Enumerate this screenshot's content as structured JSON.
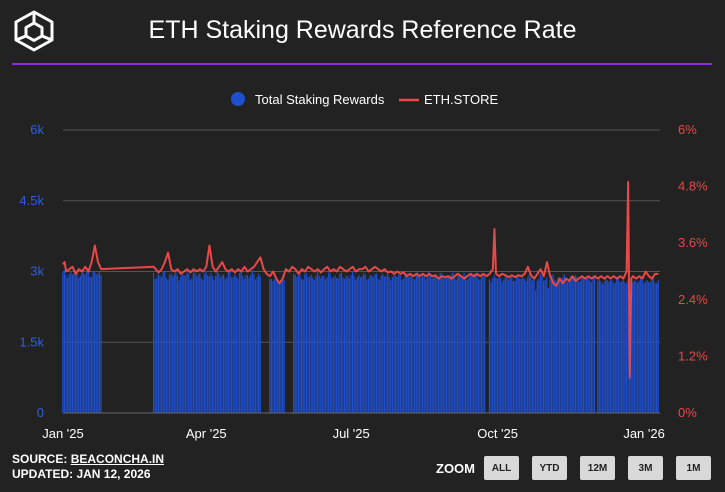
{
  "header": {
    "title": "ETH Staking Rewards Reference Rate"
  },
  "footer": {
    "source_label": "SOURCE:",
    "source_link": "BEACONCHA.IN",
    "updated": "UPDATED: JAN 12, 2026"
  },
  "zoom": {
    "label": "ZOOM",
    "buttons": [
      "ALL",
      "YTD",
      "12M",
      "3M",
      "1M"
    ]
  },
  "colors": {
    "bars": "#1f4fcf",
    "line": "#e84848",
    "left_axis": "#2f5fe0",
    "right_axis": "#e84848",
    "accent": "#8a2be2"
  },
  "chart_data": {
    "type": "bar+line",
    "legend": [
      "Total Staking Rewards",
      "ETH.STORE"
    ],
    "legend_position": "top-center",
    "x_ticks": [
      "Jan '25",
      "Apr '25",
      "Jul '25",
      "Oct '25",
      "Jan '26"
    ],
    "x_range_days": [
      0,
      375
    ],
    "x_tick_days": [
      0,
      90,
      181,
      273,
      365
    ],
    "y_left": {
      "label": "Total Staking Rewards",
      "ticks": [
        "0",
        "1.5k",
        "3k",
        "4.5k",
        "6k"
      ],
      "tick_values": [
        0,
        1500,
        3000,
        4500,
        6000
      ],
      "lim": [
        0,
        6000
      ]
    },
    "y_right": {
      "label": "ETH.STORE",
      "ticks": [
        "0%",
        "1.2%",
        "2.4%",
        "3.6%",
        "4.8%",
        "6%"
      ],
      "tick_values": [
        0,
        1.2,
        2.4,
        3.6,
        4.8,
        6.0
      ],
      "lim": [
        0,
        6.0
      ]
    },
    "bar_segments": [
      {
        "start": 0,
        "end": 24,
        "base": 2950,
        "amp": 90
      },
      {
        "start": 57,
        "end": 124,
        "base": 2920,
        "amp": 110
      },
      {
        "start": 130,
        "end": 139,
        "base": 2820,
        "amp": 80
      },
      {
        "start": 145,
        "end": 265,
        "base": 2900,
        "amp": 90
      },
      {
        "start": 268,
        "end": 334,
        "base": 2860,
        "amp": 90
      },
      {
        "start": 336,
        "end": 374,
        "base": 2800,
        "amp": 70
      }
    ],
    "bar_dips": [
      {
        "day": 297,
        "value": 2600
      },
      {
        "day": 305,
        "value": 2650
      },
      {
        "day": 335,
        "value": 2650
      }
    ],
    "line_points": [
      [
        0,
        3.15
      ],
      [
        1,
        3.2
      ],
      [
        2,
        3.0
      ],
      [
        4,
        3.05
      ],
      [
        6,
        3.1
      ],
      [
        8,
        2.95
      ],
      [
        10,
        3.05
      ],
      [
        12,
        3.0
      ],
      [
        14,
        3.1
      ],
      [
        16,
        3.0
      ],
      [
        18,
        3.2
      ],
      [
        20,
        3.55
      ],
      [
        22,
        3.2
      ],
      [
        24,
        3.05
      ],
      [
        57,
        3.1
      ],
      [
        60,
        2.98
      ],
      [
        62,
        3.05
      ],
      [
        64,
        3.2
      ],
      [
        66,
        3.4
      ],
      [
        68,
        3.05
      ],
      [
        70,
        3.0
      ],
      [
        72,
        3.05
      ],
      [
        74,
        2.95
      ],
      [
        76,
        3.0
      ],
      [
        78,
        3.05
      ],
      [
        80,
        2.98
      ],
      [
        82,
        3.05
      ],
      [
        84,
        3.0
      ],
      [
        86,
        3.05
      ],
      [
        88,
        3.0
      ],
      [
        90,
        3.1
      ],
      [
        92,
        3.55
      ],
      [
        94,
        3.1
      ],
      [
        96,
        3.0
      ],
      [
        98,
        3.1
      ],
      [
        100,
        3.2
      ],
      [
        102,
        3.05
      ],
      [
        104,
        3.0
      ],
      [
        106,
        3.05
      ],
      [
        108,
        2.98
      ],
      [
        110,
        3.05
      ],
      [
        112,
        3.0
      ],
      [
        114,
        3.1
      ],
      [
        116,
        3.0
      ],
      [
        118,
        3.05
      ],
      [
        120,
        3.1
      ],
      [
        122,
        3.2
      ],
      [
        124,
        3.3
      ],
      [
        126,
        3.05
      ],
      [
        128,
        2.95
      ],
      [
        130,
        2.9
      ],
      [
        132,
        3.0
      ],
      [
        134,
        2.85
      ],
      [
        136,
        2.75
      ],
      [
        138,
        2.85
      ],
      [
        140,
        3.05
      ],
      [
        142,
        3.0
      ],
      [
        144,
        3.1
      ],
      [
        146,
        3.05
      ],
      [
        148,
        2.95
      ],
      [
        150,
        3.05
      ],
      [
        152,
        3.0
      ],
      [
        154,
        3.1
      ],
      [
        156,
        3.05
      ],
      [
        158,
        3.0
      ],
      [
        160,
        3.05
      ],
      [
        162,
        2.98
      ],
      [
        164,
        3.05
      ],
      [
        166,
        3.1
      ],
      [
        168,
        3.0
      ],
      [
        170,
        3.05
      ],
      [
        172,
        3.0
      ],
      [
        174,
        3.1
      ],
      [
        176,
        3.05
      ],
      [
        178,
        3.0
      ],
      [
        180,
        3.05
      ],
      [
        182,
        3.1
      ],
      [
        184,
        3.0
      ],
      [
        186,
        3.05
      ],
      [
        188,
        3.05
      ],
      [
        190,
        3.1
      ],
      [
        192,
        3.0
      ],
      [
        194,
        3.05
      ],
      [
        196,
        3.1
      ],
      [
        198,
        3.05
      ],
      [
        200,
        3.0
      ],
      [
        202,
        3.05
      ],
      [
        204,
        2.98
      ],
      [
        206,
        3.0
      ],
      [
        208,
        2.95
      ],
      [
        210,
        3.0
      ],
      [
        212,
        2.95
      ],
      [
        214,
        2.98
      ],
      [
        216,
        2.9
      ],
      [
        218,
        2.95
      ],
      [
        220,
        2.9
      ],
      [
        222,
        2.95
      ],
      [
        224,
        2.9
      ],
      [
        226,
        2.95
      ],
      [
        228,
        2.9
      ],
      [
        230,
        2.95
      ],
      [
        232,
        2.9
      ],
      [
        234,
        2.92
      ],
      [
        236,
        2.85
      ],
      [
        238,
        2.9
      ],
      [
        240,
        2.88
      ],
      [
        242,
        2.9
      ],
      [
        244,
        2.85
      ],
      [
        246,
        2.9
      ],
      [
        248,
        2.95
      ],
      [
        250,
        2.9
      ],
      [
        252,
        2.85
      ],
      [
        254,
        2.9
      ],
      [
        256,
        2.95
      ],
      [
        258,
        2.9
      ],
      [
        260,
        2.95
      ],
      [
        262,
        2.9
      ],
      [
        264,
        2.95
      ],
      [
        266,
        2.9
      ],
      [
        268,
        2.95
      ],
      [
        270,
        3.05
      ],
      [
        271,
        3.9
      ],
      [
        272,
        2.95
      ],
      [
        274,
        2.9
      ],
      [
        276,
        2.95
      ],
      [
        278,
        2.92
      ],
      [
        280,
        2.88
      ],
      [
        282,
        2.92
      ],
      [
        284,
        2.88
      ],
      [
        286,
        2.92
      ],
      [
        288,
        2.9
      ],
      [
        290,
        2.95
      ],
      [
        292,
        3.1
      ],
      [
        294,
        2.92
      ],
      [
        296,
        2.85
      ],
      [
        298,
        2.95
      ],
      [
        300,
        3.05
      ],
      [
        302,
        2.9
      ],
      [
        304,
        3.2
      ],
      [
        306,
        2.9
      ],
      [
        308,
        2.75
      ],
      [
        310,
        2.7
      ],
      [
        312,
        2.85
      ],
      [
        314,
        2.75
      ],
      [
        316,
        2.85
      ],
      [
        318,
        2.8
      ],
      [
        320,
        2.9
      ],
      [
        322,
        2.8
      ],
      [
        324,
        2.85
      ],
      [
        326,
        2.9
      ],
      [
        328,
        2.85
      ],
      [
        330,
        2.9
      ],
      [
        332,
        2.85
      ],
      [
        334,
        2.9
      ],
      [
        336,
        2.85
      ],
      [
        338,
        2.9
      ],
      [
        340,
        2.85
      ],
      [
        342,
        2.9
      ],
      [
        344,
        2.85
      ],
      [
        346,
        2.9
      ],
      [
        348,
        2.85
      ],
      [
        350,
        2.9
      ],
      [
        352,
        2.85
      ],
      [
        354,
        3.0
      ],
      [
        355,
        4.9
      ],
      [
        356,
        0.75
      ],
      [
        357,
        2.85
      ],
      [
        358,
        2.9
      ],
      [
        360,
        2.85
      ],
      [
        362,
        2.9
      ],
      [
        364,
        2.85
      ],
      [
        366,
        3.0
      ],
      [
        368,
        2.9
      ],
      [
        370,
        2.85
      ],
      [
        372,
        2.95
      ],
      [
        374,
        2.95
      ]
    ]
  }
}
